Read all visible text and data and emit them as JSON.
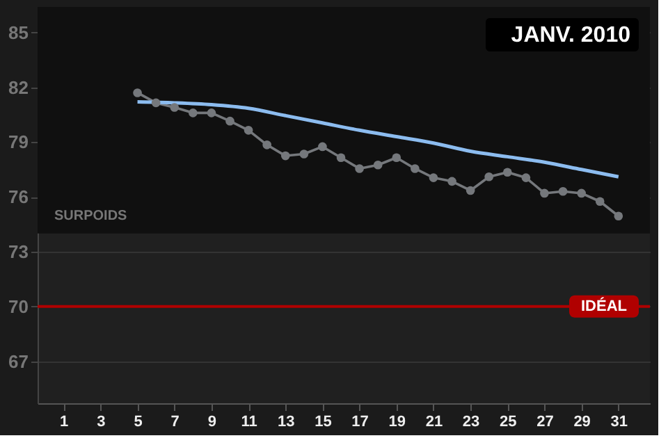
{
  "chart_data": {
    "type": "line",
    "title": "JANV. 2010",
    "xlim": [
      -0.4,
      32.7
    ],
    "xticks": [
      1,
      3,
      5,
      7,
      9,
      11,
      13,
      15,
      17,
      19,
      21,
      23,
      25,
      27,
      29,
      31
    ],
    "ylim": [
      64.7,
      86.4
    ],
    "yticks": [
      67,
      70,
      73,
      76,
      79,
      82,
      85
    ],
    "grid": "y",
    "series": [
      {
        "color": "#75787c",
        "marker": "circle",
        "x": [
          5,
          6,
          7,
          8,
          9,
          10,
          11,
          12,
          13,
          14,
          15,
          16,
          17,
          18,
          19,
          20,
          21,
          22,
          23,
          24,
          25,
          26,
          27,
          28,
          29,
          30,
          31
        ],
        "values": [
          81.7,
          81.15,
          80.9,
          80.6,
          80.6,
          80.15,
          79.65,
          78.85,
          78.25,
          78.35,
          78.75,
          78.15,
          77.55,
          77.75,
          78.15,
          77.55,
          77.05,
          76.85,
          76.35,
          77.1,
          77.35,
          77.05,
          76.2,
          76.3,
          76.2,
          75.75,
          74.95
        ]
      },
      {
        "color": "#8cbcef",
        "marker": "none",
        "x": [
          5,
          7,
          9,
          11,
          13,
          15,
          17,
          19,
          21,
          23,
          25,
          27,
          29,
          31
        ],
        "values": [
          81.2,
          81.15,
          81.05,
          80.85,
          80.45,
          80.05,
          79.65,
          79.3,
          78.95,
          78.5,
          78.2,
          77.9,
          77.5,
          77.1
        ]
      }
    ],
    "bands": [
      {
        "axis": "y",
        "from": 74.0,
        "to": 86.4,
        "label": "SURPOIDS",
        "color": "#101010"
      }
    ],
    "ref_lines": [
      {
        "axis": "y",
        "value": 70,
        "label": "IDÉAL",
        "color": "#b00000"
      }
    ]
  }
}
